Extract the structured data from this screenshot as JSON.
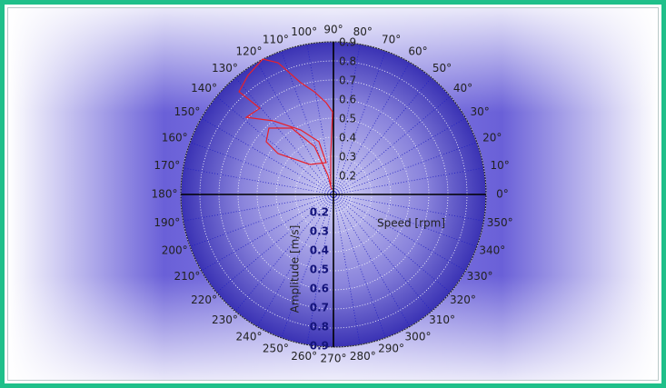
{
  "chart_data": {
    "type": "polar",
    "raxis_label": "Speed [rpm]",
    "raxis_label_lower": "Amplitude [m/s]",
    "rlim": [
      0.1,
      0.9
    ],
    "rticks": [
      0.2,
      0.3,
      0.4,
      0.5,
      0.6,
      0.7,
      0.8,
      0.9
    ],
    "thetaticks": [
      {
        "value": 0,
        "label": "0°"
      },
      {
        "value": 10,
        "label": "10°"
      },
      {
        "value": 20,
        "label": "20°"
      },
      {
        "value": 30,
        "label": "30°"
      },
      {
        "value": 40,
        "label": "40°"
      },
      {
        "value": 50,
        "label": "50°"
      },
      {
        "value": 60,
        "label": "60°"
      },
      {
        "value": 70,
        "label": "70°"
      },
      {
        "value": 80,
        "label": "80°"
      },
      {
        "value": 90,
        "label": "90°"
      },
      {
        "value": 100,
        "label": "100°"
      },
      {
        "value": 110,
        "label": "110°"
      },
      {
        "value": 120,
        "label": "120°"
      },
      {
        "value": 130,
        "label": "130°"
      },
      {
        "value": 140,
        "label": "140°"
      },
      {
        "value": 150,
        "label": "150°"
      },
      {
        "value": 160,
        "label": "160°"
      },
      {
        "value": 170,
        "label": "170°"
      },
      {
        "value": 180,
        "label": "180°"
      },
      {
        "value": 190,
        "label": "190°"
      },
      {
        "value": 200,
        "label": "200°"
      },
      {
        "value": 210,
        "label": "210°"
      },
      {
        "value": 220,
        "label": "220°"
      },
      {
        "value": 230,
        "label": "230°"
      },
      {
        "value": 240,
        "label": "240°"
      },
      {
        "value": 250,
        "label": "250°"
      },
      {
        "value": 260,
        "label": "260°"
      },
      {
        "value": 270,
        "label": "270°"
      },
      {
        "value": 280,
        "label": "280°"
      },
      {
        "value": 290,
        "label": "290°"
      },
      {
        "value": 300,
        "label": "300°"
      },
      {
        "value": 310,
        "label": "310°"
      },
      {
        "value": 320,
        "label": "320°"
      },
      {
        "value": 330,
        "label": "330°"
      },
      {
        "value": 340,
        "label": "340°"
      },
      {
        "value": 350,
        "label": "350°"
      }
    ],
    "series": [
      {
        "color": "#e8202a",
        "theta": [
          110.6,
          94,
          90.6,
          94.5,
          100.5,
          106.3,
          112.8,
          117.6,
          125.7,
          132.6,
          130.5,
          138.5,
          129.2,
          116.9,
          105.4,
          102.9,
          128.2,
          143.6,
          141.9,
          134.2,
          122.2,
          111.6,
          105.9,
          111.8
        ],
        "r": [
          0.14,
          0.305,
          0.533,
          0.582,
          0.647,
          0.71,
          0.849,
          0.9,
          0.868,
          0.831,
          0.694,
          0.71,
          0.598,
          0.479,
          0.387,
          0.271,
          0.3,
          0.461,
          0.548,
          0.585,
          0.511,
          0.371,
          0.204,
          0.126
        ]
      }
    ]
  }
}
